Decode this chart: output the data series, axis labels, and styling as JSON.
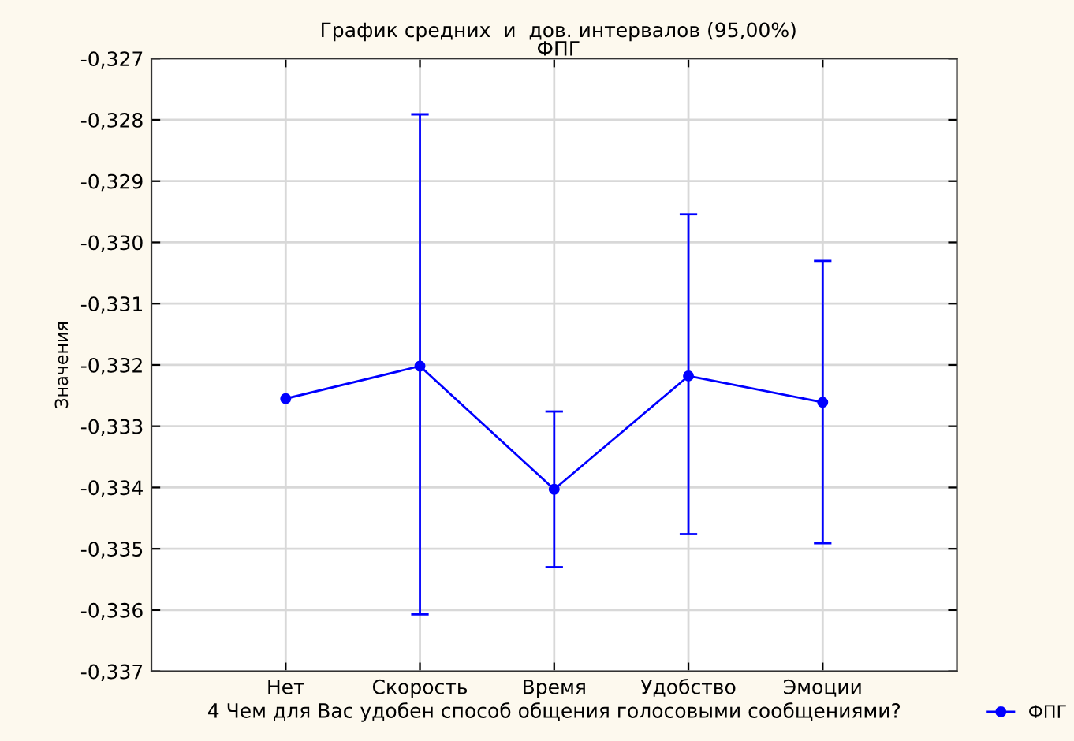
{
  "chart_data": {
    "type": "line",
    "title": "График средних  и  дов. интервалов (95,00%)",
    "subtitle": "ФПГ",
    "xlabel": "4 Чем для Вас удобен способ общения голосовыми сообщениями?",
    "ylabel": "Значения",
    "categories": [
      "Нет",
      "Скорость",
      "Время",
      "Удобство",
      "Эмоции"
    ],
    "series": [
      {
        "name": "ФПГ",
        "color": "#0000ff",
        "values": [
          -0.33255,
          -0.33202,
          -0.33403,
          -0.33218,
          -0.33261
        ],
        "errors": [
          null,
          [
            -0.33607,
            -0.32791
          ],
          [
            -0.3353,
            -0.33276
          ],
          [
            -0.33476,
            -0.32954
          ],
          [
            -0.33491,
            -0.3303
          ]
        ]
      }
    ],
    "ylim": [
      -0.337,
      -0.327
    ],
    "yticks": [
      {
        "value": -0.337,
        "label": "-0,337"
      },
      {
        "value": -0.336,
        "label": "-0,336"
      },
      {
        "value": -0.335,
        "label": "-0,335"
      },
      {
        "value": -0.334,
        "label": "-0,334"
      },
      {
        "value": -0.333,
        "label": "-0,333"
      },
      {
        "value": -0.332,
        "label": "-0,332"
      },
      {
        "value": -0.331,
        "label": "-0,331"
      },
      {
        "value": -0.33,
        "label": "-0,330"
      },
      {
        "value": -0.329,
        "label": "-0,329"
      },
      {
        "value": -0.328,
        "label": "-0,328"
      },
      {
        "value": -0.327,
        "label": "-0,327"
      }
    ],
    "grid": true,
    "legend": "bottom right",
    "marker": "circle",
    "line_style": "solid"
  }
}
